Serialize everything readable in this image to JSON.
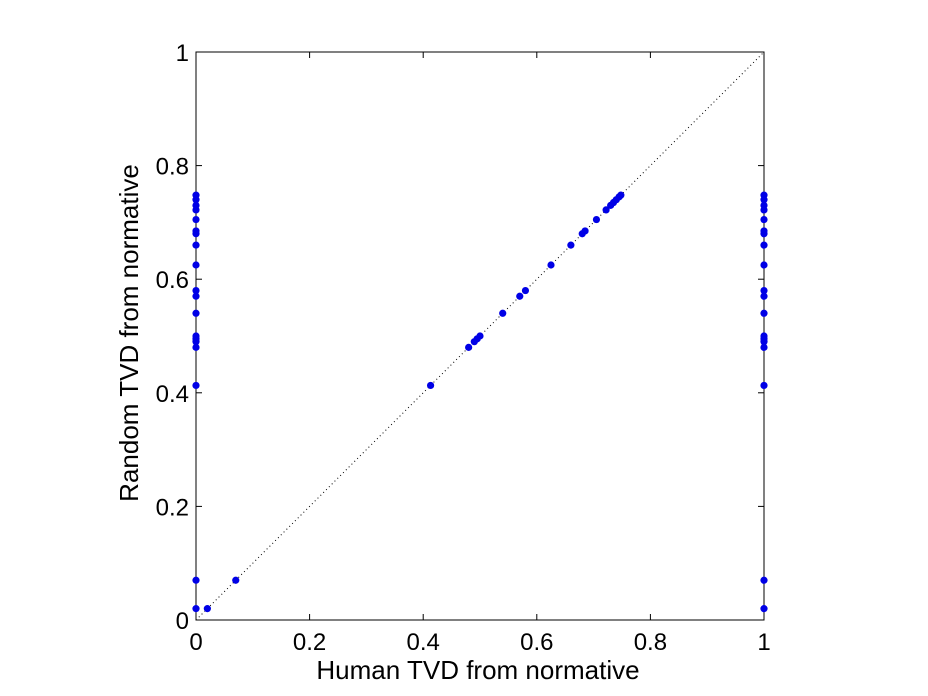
{
  "chart_data": {
    "type": "scatter",
    "title": "",
    "xlabel": "Human TVD from normative",
    "ylabel": "Random TVD from normative",
    "xlim": [
      0,
      1
    ],
    "ylim": [
      0,
      1
    ],
    "xticks": [
      0,
      0.2,
      0.4,
      0.6,
      0.8,
      1
    ],
    "yticks": [
      0,
      0.2,
      0.4,
      0.6,
      0.8,
      1
    ],
    "xtick_labels": [
      "0",
      "0.2",
      "0.4",
      "0.6",
      "0.8",
      "1"
    ],
    "ytick_labels": [
      "0",
      "0.2",
      "0.4",
      "0.6",
      "0.8",
      "1"
    ],
    "grid": false,
    "reference_line": {
      "style": "dotted",
      "from": [
        0,
        0
      ],
      "to": [
        1,
        1
      ]
    },
    "marker_color": "#0000e6",
    "series": [
      {
        "points": [
          [
            0,
            0.02
          ],
          [
            0,
            0.07
          ],
          [
            0,
            0.413
          ],
          [
            0,
            0.48
          ],
          [
            0,
            0.49
          ],
          [
            0,
            0.495
          ],
          [
            0,
            0.5
          ],
          [
            0,
            0.54
          ],
          [
            0,
            0.57
          ],
          [
            0,
            0.58
          ],
          [
            0,
            0.625
          ],
          [
            0,
            0.66
          ],
          [
            0,
            0.68
          ],
          [
            0,
            0.685
          ],
          [
            0,
            0.705
          ],
          [
            0,
            0.722
          ],
          [
            0,
            0.73
          ],
          [
            0,
            0.74
          ],
          [
            0,
            0.748
          ],
          [
            1,
            0.02
          ],
          [
            1,
            0.07
          ],
          [
            1,
            0.413
          ],
          [
            1,
            0.48
          ],
          [
            1,
            0.49
          ],
          [
            1,
            0.495
          ],
          [
            1,
            0.5
          ],
          [
            1,
            0.54
          ],
          [
            1,
            0.57
          ],
          [
            1,
            0.58
          ],
          [
            1,
            0.625
          ],
          [
            1,
            0.66
          ],
          [
            1,
            0.68
          ],
          [
            1,
            0.685
          ],
          [
            1,
            0.705
          ],
          [
            1,
            0.722
          ],
          [
            1,
            0.73
          ],
          [
            1,
            0.74
          ],
          [
            1,
            0.748
          ],
          [
            0.02,
            0.02
          ],
          [
            0.07,
            0.07
          ],
          [
            0.413,
            0.413
          ],
          [
            0.48,
            0.48
          ],
          [
            0.49,
            0.49
          ],
          [
            0.495,
            0.495
          ],
          [
            0.5,
            0.5
          ],
          [
            0.54,
            0.54
          ],
          [
            0.57,
            0.57
          ],
          [
            0.58,
            0.58
          ],
          [
            0.625,
            0.625
          ],
          [
            0.66,
            0.66
          ],
          [
            0.68,
            0.68
          ],
          [
            0.685,
            0.685
          ],
          [
            0.705,
            0.705
          ],
          [
            0.722,
            0.722
          ],
          [
            0.73,
            0.73
          ],
          [
            0.735,
            0.735
          ],
          [
            0.74,
            0.74
          ],
          [
            0.745,
            0.745
          ],
          [
            0.748,
            0.748
          ]
        ]
      }
    ]
  }
}
